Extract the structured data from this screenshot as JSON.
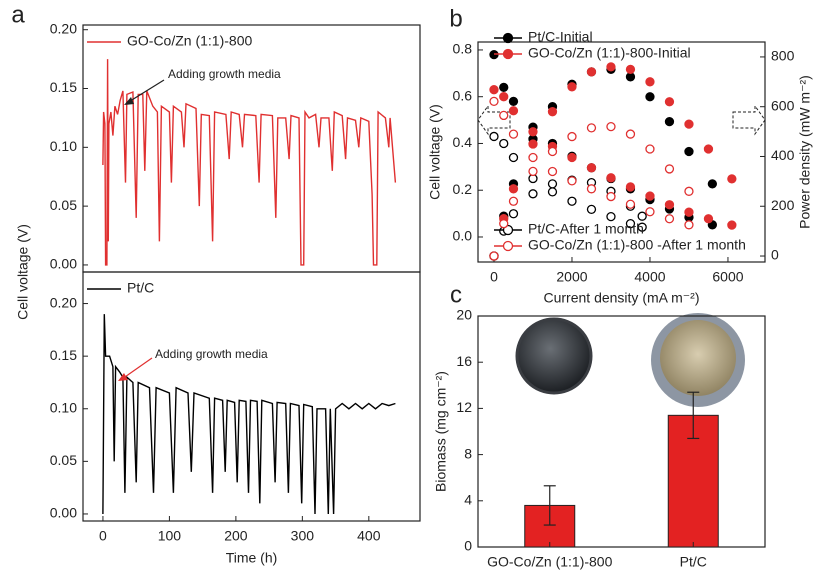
{
  "chart_data": [
    {
      "type": "line",
      "panel": "a",
      "ylabel": "Cell voltage (V)",
      "annotation": "Adding growth media",
      "xlim": [
        -30,
        477
      ],
      "ylim": [
        -0.006,
        0.204
      ],
      "yticks": [
        {
          "value": 0,
          "label": "0.00"
        },
        {
          "value": 0.05,
          "label": "0.05"
        },
        {
          "value": 0.1,
          "label": "0.10"
        },
        {
          "value": 0.15,
          "label": "0.15"
        },
        {
          "value": 0.2,
          "label": "0.20"
        }
      ],
      "x": [
        0,
        1,
        3,
        4,
        6,
        7,
        8,
        9,
        12,
        15,
        18,
        22,
        26,
        30,
        34,
        36,
        45,
        50,
        53,
        60,
        63,
        66,
        75,
        82,
        85,
        88,
        100,
        103,
        106,
        118,
        122,
        125,
        140,
        145,
        148,
        160,
        165,
        168,
        185,
        190,
        193,
        205,
        210,
        213,
        230,
        235,
        238,
        255,
        260,
        263,
        275,
        280,
        283,
        295,
        298,
        302,
        304,
        310,
        320,
        325,
        328,
        340,
        345,
        348,
        360,
        365,
        368,
        380,
        385,
        388,
        400,
        405,
        407,
        412,
        414,
        425,
        430,
        432,
        440
      ],
      "series": [
        {
          "name": "GO-Co/Zn (1:1)-800",
          "color": "#e03030",
          "values": [
            0.085,
            0.13,
            0.12,
            0,
            0,
            0.175,
            0.02,
            0.12,
            0.13,
            0.11,
            0.135,
            0.128,
            0.14,
            0.148,
            0.07,
            0.145,
            0.147,
            0.04,
            0.145,
            0.145,
            0.08,
            0.148,
            0.135,
            0.13,
            0.02,
            0.135,
            0.13,
            0.07,
            0.135,
            0.13,
            0.1,
            0.137,
            0.133,
            0.05,
            0.128,
            0.127,
            0.02,
            0.13,
            0.128,
            0.09,
            0.13,
            0.128,
            0.1,
            0.128,
            0.127,
            0.07,
            0.128,
            0.127,
            0.04,
            0.125,
            0.125,
            0.09,
            0.127,
            0.125,
            0,
            0,
            0.13,
            0.125,
            0.128,
            0.1,
            0.125,
            0.125,
            0.08,
            0.13,
            0.127,
            0.09,
            0.125,
            0.123,
            0.1,
            0.125,
            0.122,
            0.06,
            0,
            0,
            0.13,
            0.125,
            0.1,
            0.125,
            0.07
          ]
        }
      ]
    },
    {
      "type": "line",
      "xlabel": "Time (h)",
      "annotation": "Adding growth media",
      "xlim": [
        -30,
        477
      ],
      "xticks": [
        0,
        100,
        200,
        300,
        400
      ],
      "ylim": [
        -0.0067,
        0.23
      ],
      "yticks": [
        {
          "value": 0,
          "label": "0.00"
        },
        {
          "value": 0.05,
          "label": "0.05"
        },
        {
          "value": 0.1,
          "label": "0.10"
        },
        {
          "value": 0.15,
          "label": "0.15"
        },
        {
          "value": 0.2,
          "label": "0.20"
        }
      ],
      "x": [
        0,
        2,
        4,
        10,
        15,
        17,
        19,
        25,
        30,
        33,
        36,
        45,
        50,
        53,
        70,
        76,
        80,
        100,
        106,
        110,
        128,
        133,
        137,
        160,
        165,
        168,
        180,
        184,
        187,
        198,
        202,
        205,
        215,
        219,
        222,
        232,
        236,
        239,
        255,
        259,
        262,
        275,
        279,
        282,
        295,
        299,
        302,
        315,
        319,
        322,
        335,
        339,
        342,
        347,
        350,
        360,
        370,
        380,
        390,
        400,
        410,
        420,
        430,
        440
      ],
      "series": [
        {
          "name": "Pt/C",
          "color": "#000000",
          "values": [
            0,
            0.19,
            0.15,
            0.15,
            0.14,
            0.05,
            0.14,
            0.135,
            0.13,
            0.02,
            0.13,
            0.125,
            0.03,
            0.125,
            0.12,
            0.02,
            0.12,
            0.115,
            0.02,
            0.12,
            0.115,
            0.04,
            0.115,
            0.11,
            0.02,
            0.11,
            0.108,
            0.04,
            0.108,
            0.106,
            0.03,
            0.108,
            0.107,
            0.02,
            0.108,
            0.107,
            0.01,
            0.108,
            0.105,
            0.03,
            0.106,
            0.105,
            0.02,
            0.105,
            0.103,
            0.01,
            0.104,
            0.102,
            0,
            0.1,
            0.1,
            0,
            0.1,
            0,
            0.1,
            0.105,
            0.1,
            0.105,
            0.1,
            0.105,
            0.1,
            0.105,
            0.103,
            0.105
          ]
        }
      ]
    },
    {
      "type": "line",
      "panel": "b",
      "xlabel": "Current density (mA m⁻²)",
      "ylabel": "Cell voltage (V)",
      "y2label": "Power density (mW m⁻²)",
      "xlim": [
        -410,
        6950
      ],
      "xticks": [
        0,
        2000,
        4000,
        6000
      ],
      "ylim": [
        -0.107,
        0.834
      ],
      "yticks": [
        {
          "value": 0,
          "label": "0.0"
        },
        {
          "value": 0.2,
          "label": "0.2"
        },
        {
          "value": 0.4,
          "label": "0.4"
        },
        {
          "value": 0.6,
          "label": "0.6"
        },
        {
          "value": 0.8,
          "label": "0.8"
        }
      ],
      "y2lim": [
        -24,
        860
      ],
      "y2ticks": [
        0,
        200,
        400,
        600,
        800
      ],
      "series": [
        {
          "name": "Pt/C-Initial",
          "color": "#000000",
          "marker": "filled",
          "x": [
            0,
            250,
            500,
            1000,
            1500,
            2000,
            2500,
            3000,
            3500,
            4000,
            4500,
            5000,
            5600
          ],
          "values": [
            0.78,
            0.64,
            0.58,
            0.47,
            0.4,
            0.345,
            0.296,
            0.25,
            0.206,
            0.16,
            0.12,
            0.084,
            0.052
          ],
          "power": [
            0,
            160,
            290,
            470,
            600,
            690,
            740,
            750,
            720,
            640,
            540,
            420,
            290
          ]
        },
        {
          "name": "GO-Co/Zn (1:1)-800-Initial",
          "color": "#e03030",
          "marker": "filled",
          "x": [
            0,
            250,
            500,
            1000,
            1500,
            2000,
            2500,
            3000,
            3500,
            4000,
            4500,
            5000,
            5500,
            6100
          ],
          "values": [
            0.63,
            0.6,
            0.54,
            0.45,
            0.387,
            0.34,
            0.296,
            0.253,
            0.214,
            0.175,
            0.138,
            0.106,
            0.078,
            0.051
          ],
          "power": [
            0,
            150,
            270,
            450,
            580,
            680,
            740,
            760,
            750,
            700,
            620,
            530,
            430,
            310
          ]
        },
        {
          "name": "Pt/C-After 1 month",
          "color": "#000000",
          "marker": "open",
          "x": [
            0,
            250,
            500,
            1000,
            1500,
            2000,
            2500,
            3000,
            3500,
            3800
          ],
          "values": [
            0.43,
            0.4,
            0.34,
            0.25,
            0.193,
            0.153,
            0.118,
            0.087,
            0.057,
            0.042
          ],
          "power": [
            0,
            100,
            170,
            250,
            290,
            305,
            295,
            260,
            200,
            160
          ]
        },
        {
          "name": "GO-Co/Zn (1:1)-800 -After 1 month",
          "color": "#e03030",
          "marker": "open",
          "x": [
            0,
            250,
            500,
            1000,
            1500,
            2000,
            2500,
            3000,
            3500,
            4000,
            4500,
            5000
          ],
          "values": [
            0.58,
            0.52,
            0.44,
            0.34,
            0.28,
            0.24,
            0.206,
            0.173,
            0.14,
            0.108,
            0.078,
            0.052
          ],
          "power": [
            0,
            130,
            220,
            340,
            420,
            480,
            515,
            520,
            490,
            430,
            350,
            260
          ]
        }
      ]
    },
    {
      "type": "bar",
      "panel": "c",
      "ylabel": "Biomass (mg cm⁻²)",
      "categories": [
        "GO-Co/Zn (1:1)-800",
        "Pt/C"
      ],
      "values": [
        3.6,
        11.4
      ],
      "errors": [
        1.7,
        2.0
      ],
      "color": "#e32222",
      "ylim": [
        0,
        20
      ],
      "yticks": [
        0,
        4,
        8,
        12,
        16,
        20
      ]
    }
  ]
}
